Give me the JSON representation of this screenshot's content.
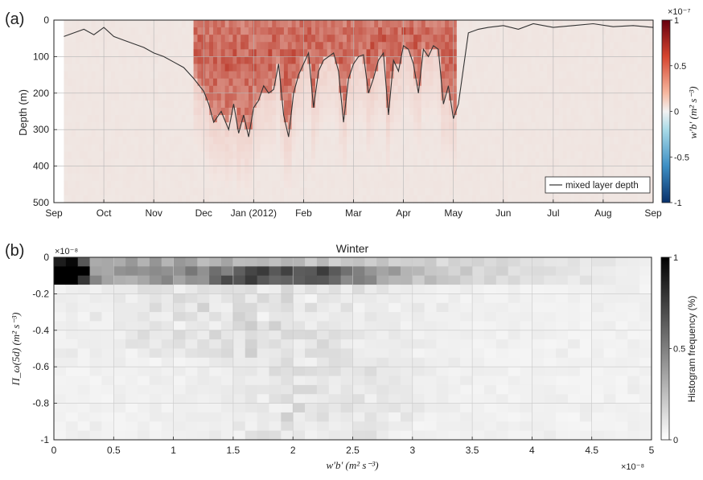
{
  "chart_data": [
    {
      "panel_label": "(a)",
      "type": "heatmap",
      "title": "",
      "xlabel": "",
      "ylabel": "Depth (m)",
      "x_tick_labels": [
        "Sep",
        "Oct",
        "Nov",
        "Dec",
        "Jan (2012)",
        "Feb",
        "Mar",
        "Apr",
        "May",
        "Jun",
        "Jul",
        "Aug",
        "Sep"
      ],
      "y_ticks": [
        0,
        100,
        200,
        300,
        400,
        500
      ],
      "ylim": [
        0,
        500
      ],
      "y_reversed": true,
      "grid": true,
      "colorbar": {
        "label": "w′b′ (m² s⁻³)",
        "exponent": "×10⁻⁷",
        "ticks": [
          1,
          0.5,
          0,
          -0.5,
          -1
        ],
        "range": [
          -1,
          1
        ],
        "colormap": "diverging blue-white-red",
        "colors": {
          "neg": "#08306b",
          "mid": "#f2f2f2",
          "pos": "#67000d"
        }
      },
      "legend": {
        "entries": [
          "mixed layer depth"
        ],
        "placement": "bottom-right"
      },
      "series": [
        {
          "name": "mixed layer depth",
          "color": "#333333",
          "x_month": [
            0.2,
            0.4,
            0.6,
            0.8,
            1.0,
            1.2,
            1.4,
            1.6,
            1.8,
            2.0,
            2.2,
            2.4,
            2.6,
            2.8,
            3.0,
            3.1,
            3.2,
            3.35,
            3.5,
            3.6,
            3.7,
            3.8,
            3.9,
            4.0,
            4.1,
            4.2,
            4.3,
            4.4,
            4.5,
            4.6,
            4.7,
            4.8,
            4.9,
            5.0,
            5.1,
            5.2,
            5.3,
            5.4,
            5.5,
            5.6,
            5.7,
            5.8,
            5.9,
            6.0,
            6.1,
            6.2,
            6.3,
            6.4,
            6.5,
            6.6,
            6.7,
            6.8,
            6.9,
            7.0,
            7.1,
            7.2,
            7.3,
            7.4,
            7.5,
            7.6,
            7.7,
            7.8,
            7.9,
            8.0,
            8.1,
            8.3,
            8.5,
            8.7,
            9.0,
            9.3,
            9.6,
            10.0,
            10.4,
            10.8,
            11.2,
            11.6,
            12.0
          ],
          "depth_m": [
            45,
            35,
            25,
            40,
            20,
            45,
            55,
            65,
            75,
            90,
            100,
            115,
            130,
            160,
            195,
            230,
            280,
            250,
            300,
            230,
            310,
            260,
            320,
            240,
            220,
            180,
            200,
            190,
            120,
            260,
            320,
            200,
            150,
            120,
            90,
            240,
            140,
            110,
            100,
            90,
            140,
            280,
            160,
            120,
            100,
            95,
            200,
            160,
            110,
            90,
            260,
            110,
            140,
            70,
            80,
            120,
            200,
            80,
            100,
            70,
            80,
            230,
            180,
            270,
            230,
            35,
            25,
            20,
            15,
            25,
            10,
            20,
            15,
            10,
            18,
            15,
            20
          ]
        }
      ]
    },
    {
      "panel_label": "(b)",
      "type": "heatmap",
      "title": "Winter",
      "xlabel": "w′b′ (m² s⁻³)",
      "ylabel": "Π_ω(5d) (m² s⁻³)",
      "x_exponent": "×10⁻⁸",
      "y_exponent": "×10⁻⁸",
      "x_ticks": [
        0,
        0.5,
        1,
        1.5,
        2,
        2.5,
        3,
        3.5,
        4,
        4.5,
        5
      ],
      "y_ticks": [
        0,
        -0.2,
        -0.4,
        -0.6,
        -0.8,
        -1
      ],
      "xlim": [
        0,
        5
      ],
      "ylim": [
        -1,
        0
      ],
      "grid": true,
      "colorbar": {
        "label": "Histogram frequency (%)",
        "ticks": [
          1,
          0.5,
          0
        ],
        "range": [
          0,
          1
        ],
        "colormap": "gray (white to black)",
        "colors": {
          "low": "#ffffff",
          "high": "#000000"
        }
      }
    }
  ]
}
